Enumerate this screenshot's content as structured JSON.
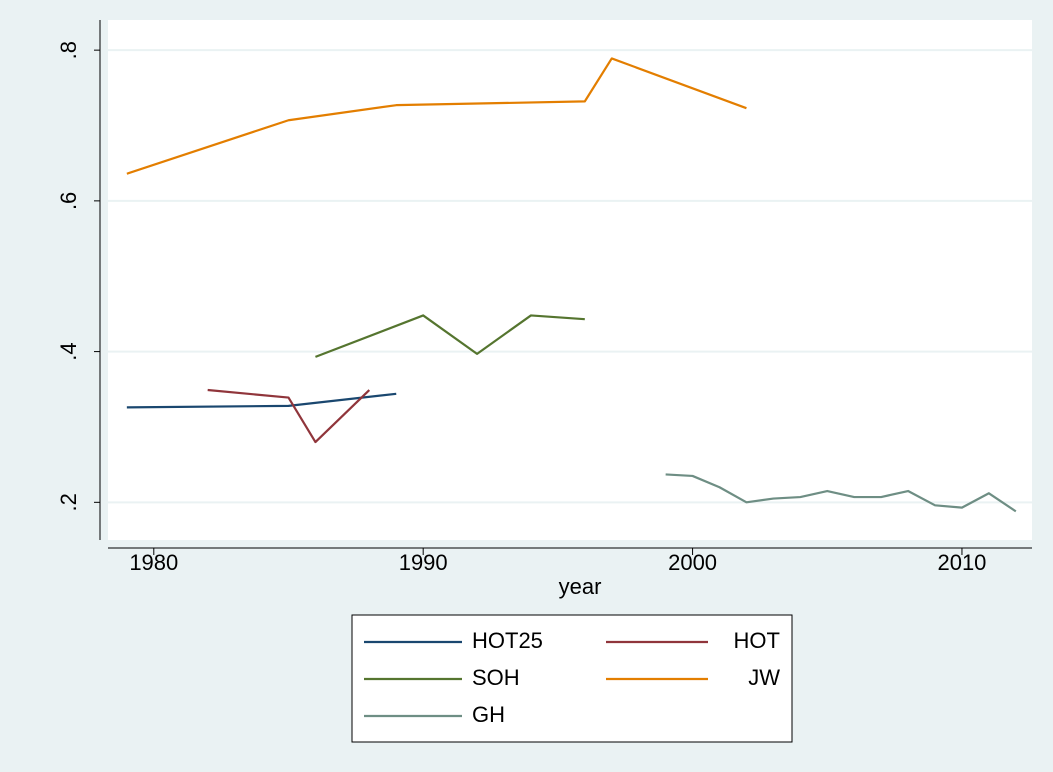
{
  "chart_data": {
    "type": "line",
    "xlabel": "year",
    "xlim": [
      1978.3,
      2012.6
    ],
    "xticks": [
      1980,
      1990,
      2000,
      2010
    ],
    "ylim": [
      0.15,
      0.84
    ],
    "yticks": [
      {
        "value": 0.2,
        "label": ".2"
      },
      {
        "value": 0.4,
        "label": ".4"
      },
      {
        "value": 0.6,
        "label": ".6"
      },
      {
        "value": 0.8,
        "label": ".8"
      }
    ],
    "grid": true,
    "legend": "bottom",
    "series": [
      {
        "name": "HOT25",
        "color": "#1a476f",
        "x": [
          1979,
          1985,
          1989
        ],
        "values": [
          0.326,
          0.328,
          0.344
        ]
      },
      {
        "name": "HOT",
        "color": "#90353b",
        "x": [
          1982,
          1985,
          1986,
          1988
        ],
        "values": [
          0.349,
          0.339,
          0.28,
          0.349
        ]
      },
      {
        "name": "SOH",
        "color": "#55752f",
        "x": [
          1986,
          1990,
          1992,
          1994,
          1996
        ],
        "values": [
          0.393,
          0.448,
          0.397,
          0.448,
          0.443
        ]
      },
      {
        "name": "JW",
        "color": "#e37e00",
        "x": [
          1979,
          1985,
          1989,
          1996,
          1997,
          2002
        ],
        "values": [
          0.636,
          0.707,
          0.727,
          0.732,
          0.789,
          0.723
        ]
      },
      {
        "name": "GH",
        "color": "#6e8e84",
        "x": [
          1999,
          2000,
          2001,
          2002,
          2003,
          2004,
          2005,
          2006,
          2007,
          2008,
          2009,
          2010,
          2011,
          2012
        ],
        "values": [
          0.237,
          0.235,
          0.22,
          0.2,
          0.205,
          0.207,
          0.215,
          0.207,
          0.207,
          0.215,
          0.196,
          0.193,
          0.212,
          0.188
        ]
      }
    ]
  }
}
